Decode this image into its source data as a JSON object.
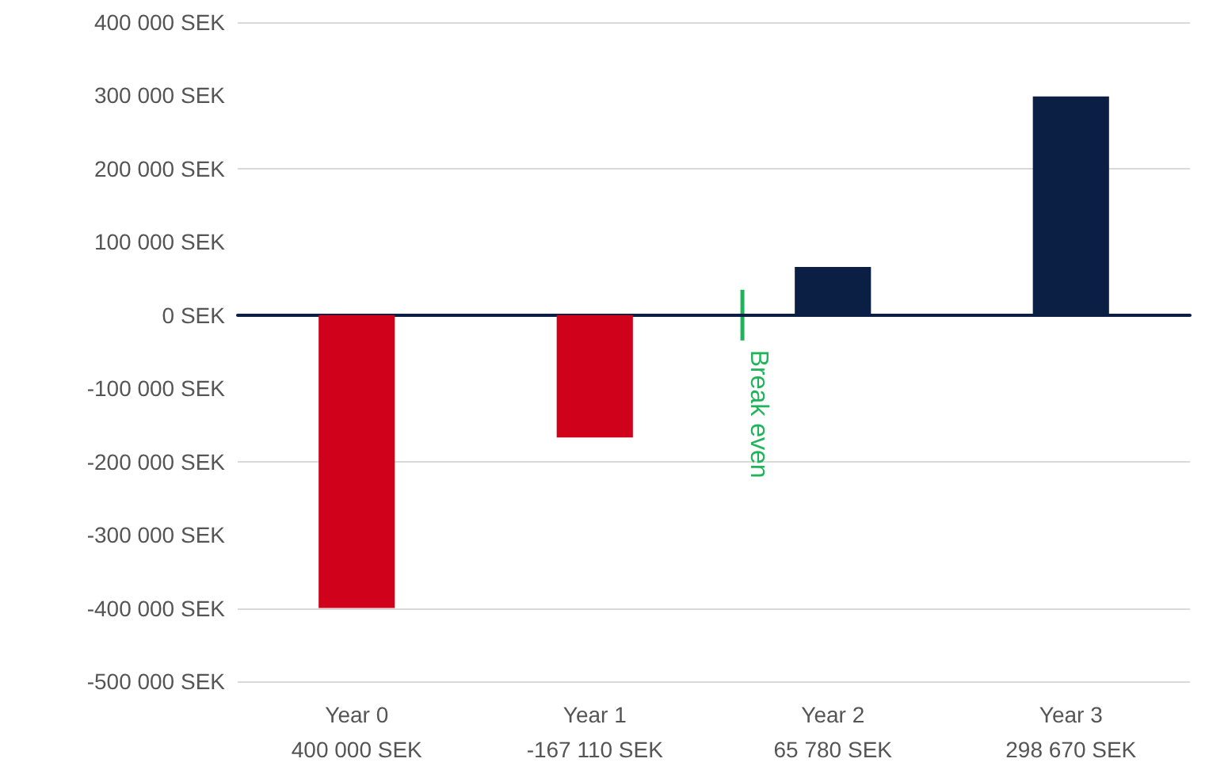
{
  "chart_data": {
    "type": "bar",
    "categories": [
      "Year 0\n400 000 SEK",
      "Year 1\n-167 110 SEK",
      "Year 2\n65 780 SEK",
      "Year 3\n298 670 SEK"
    ],
    "values": [
      -400000,
      -167110,
      65780,
      298670
    ],
    "colors": [
      "#d0021b",
      "#d0021b",
      "#0b1f45",
      "#0b1f45"
    ],
    "ylim": [
      -500000,
      400000
    ],
    "yticks": [
      {
        "value": -500000,
        "label": "-500 000 SEK"
      },
      {
        "value": -400000,
        "label": "-400 000 SEK"
      },
      {
        "value": -300000,
        "label": "-300 000 SEK"
      },
      {
        "value": -200000,
        "label": "-200 000 SEK"
      },
      {
        "value": -100000,
        "label": "-100 000 SEK"
      },
      {
        "value": 0,
        "label": "0 SEK"
      },
      {
        "value": 100000,
        "label": "100 000 SEK"
      },
      {
        "value": 200000,
        "label": "200 000 SEK"
      },
      {
        "value": 300000,
        "label": "300 000 SEK"
      },
      {
        "value": 400000,
        "label": "400 000 SEK"
      }
    ],
    "grid": "y",
    "annotations": [
      "Break even"
    ]
  }
}
